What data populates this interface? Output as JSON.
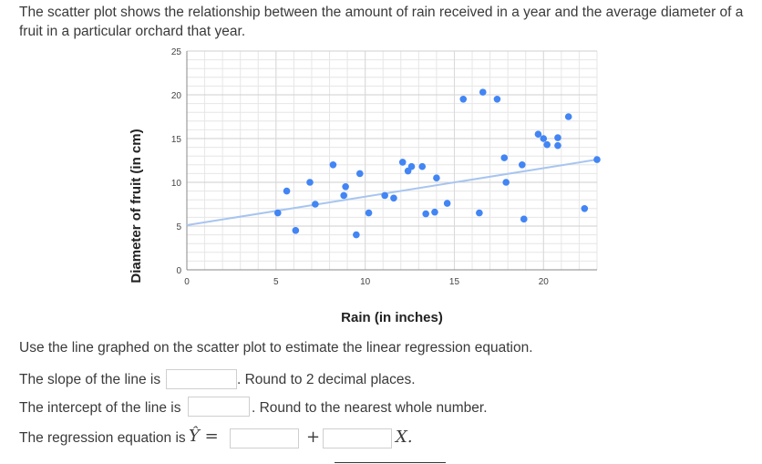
{
  "intro_text": "The scatter plot shows the relationship between the amount of rain received in a year and the average diameter of a fruit in a particular orchard that year.",
  "chart_data": {
    "type": "scatter",
    "xlabel": "Rain (in inches)",
    "ylabel": "Diameter of fruit (in cm)",
    "xlim": [
      0,
      23
    ],
    "ylim": [
      0,
      25
    ],
    "x_ticks": [
      "0",
      "5",
      "10",
      "15",
      "20"
    ],
    "y_ticks": [
      "0",
      "5",
      "10",
      "15",
      "20",
      "25"
    ],
    "grid": true,
    "colors": {
      "points": "#4285f4",
      "line": "#a7c5f0",
      "grid": "#e6e6e6"
    },
    "points": [
      {
        "x": 5.1,
        "y": 6.5
      },
      {
        "x": 5.6,
        "y": 9.0
      },
      {
        "x": 6.1,
        "y": 4.5
      },
      {
        "x": 6.9,
        "y": 10.0
      },
      {
        "x": 7.2,
        "y": 7.5
      },
      {
        "x": 8.2,
        "y": 12.0
      },
      {
        "x": 8.8,
        "y": 8.5
      },
      {
        "x": 8.9,
        "y": 9.5
      },
      {
        "x": 9.5,
        "y": 4.0
      },
      {
        "x": 9.7,
        "y": 11.0
      },
      {
        "x": 10.2,
        "y": 6.5
      },
      {
        "x": 11.1,
        "y": 8.5
      },
      {
        "x": 11.6,
        "y": 8.2
      },
      {
        "x": 12.1,
        "y": 12.3
      },
      {
        "x": 12.4,
        "y": 11.3
      },
      {
        "x": 12.6,
        "y": 11.8
      },
      {
        "x": 13.2,
        "y": 11.8
      },
      {
        "x": 13.4,
        "y": 6.4
      },
      {
        "x": 13.9,
        "y": 6.6
      },
      {
        "x": 14.0,
        "y": 10.5
      },
      {
        "x": 14.6,
        "y": 7.6
      },
      {
        "x": 15.5,
        "y": 19.5
      },
      {
        "x": 16.4,
        "y": 6.5
      },
      {
        "x": 16.6,
        "y": 20.3
      },
      {
        "x": 17.4,
        "y": 19.5
      },
      {
        "x": 17.8,
        "y": 12.8
      },
      {
        "x": 17.9,
        "y": 10.0
      },
      {
        "x": 18.8,
        "y": 12.0
      },
      {
        "x": 18.9,
        "y": 5.8
      },
      {
        "x": 19.7,
        "y": 15.5
      },
      {
        "x": 20.0,
        "y": 15.0
      },
      {
        "x": 20.2,
        "y": 14.3
      },
      {
        "x": 20.8,
        "y": 15.1
      },
      {
        "x": 20.8,
        "y": 14.2
      },
      {
        "x": 21.4,
        "y": 17.5
      },
      {
        "x": 22.3,
        "y": 7.0
      },
      {
        "x": 23.0,
        "y": 12.6
      }
    ],
    "regression_line": {
      "x": [
        0,
        23
      ],
      "y": [
        5.1,
        12.6
      ]
    }
  },
  "instruction": "Use the line graphed on the scatter plot to estimate the linear regression equation.",
  "slope_label": "The slope of the line is",
  "slope_hint": ". Round to 2 decimal places.",
  "intercept_label": "The intercept of the line is",
  "intercept_hint": ". Round to the nearest whole number.",
  "equation_label": "The regression equation is",
  "equation_lhs": "Ŷ =",
  "plus_sign": "+",
  "x_var": "X.",
  "inputs": {
    "slope": "",
    "intercept": "",
    "eq_intercept": "",
    "eq_slope": ""
  }
}
